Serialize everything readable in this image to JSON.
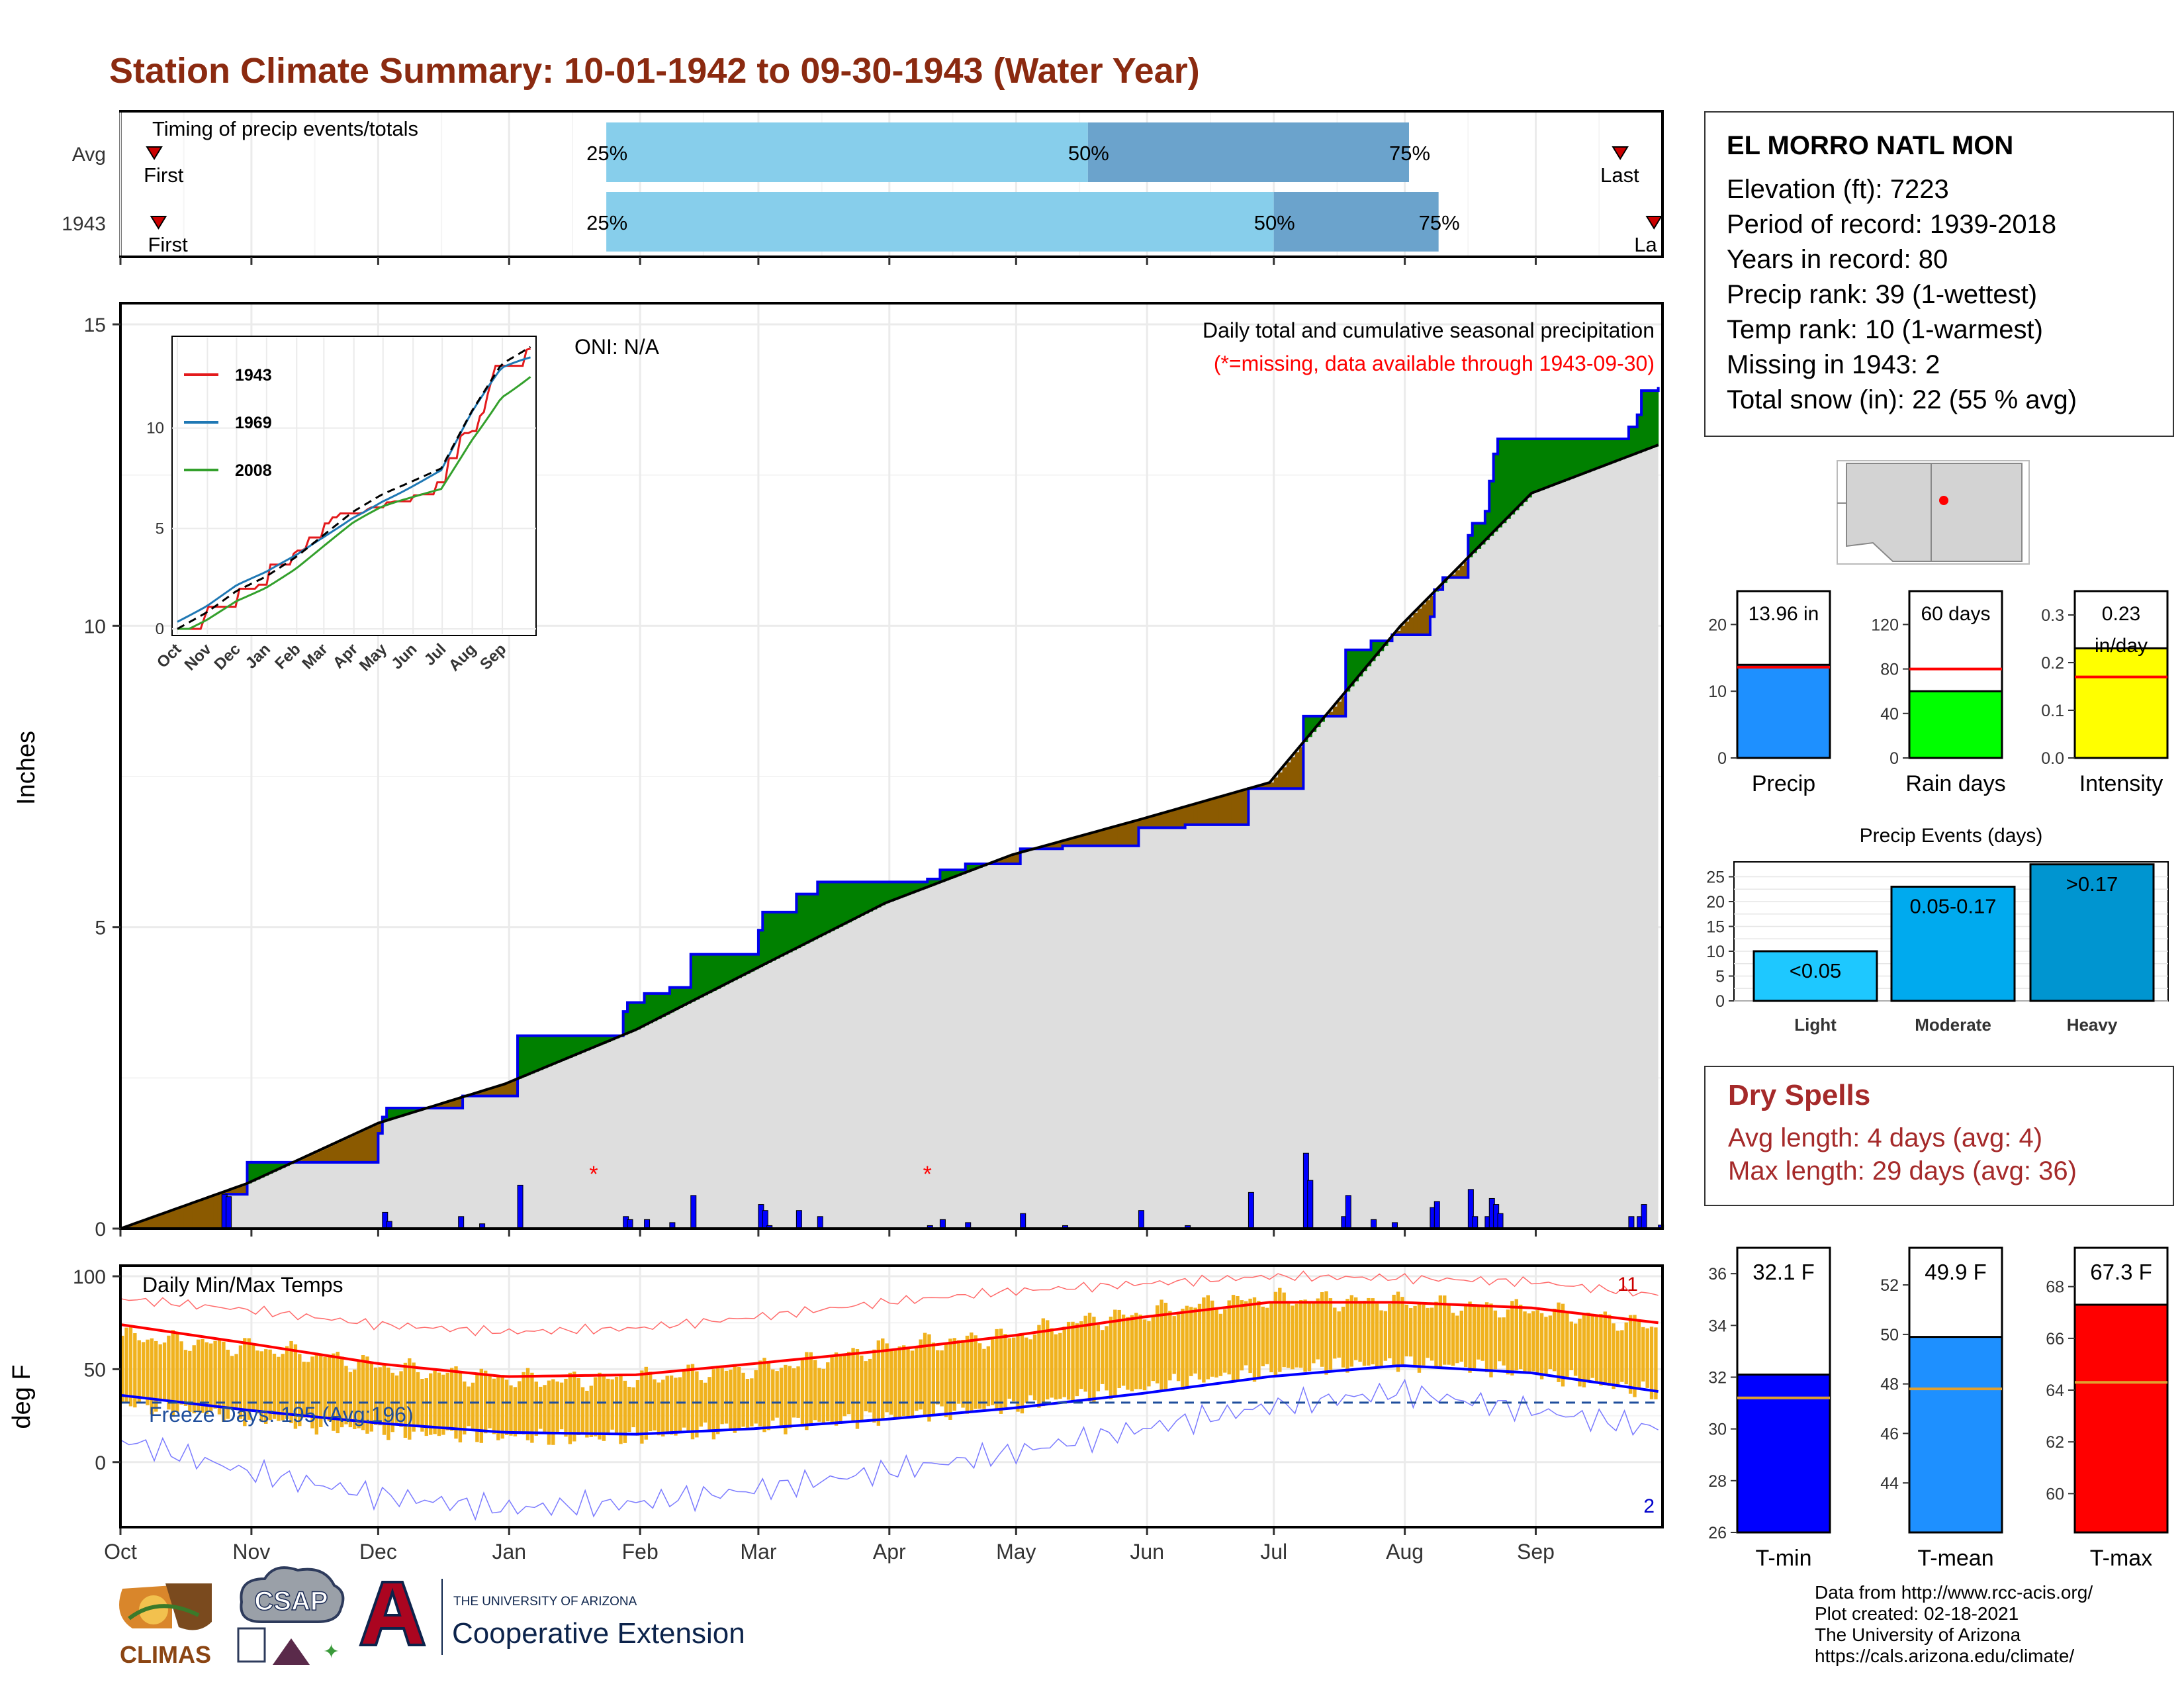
{
  "title": "Station Climate Summary: 10-01-1942 to 09-30-1943 (Water Year)",
  "colors": {
    "title": "#8b2a10",
    "dry_title": "#a52a2a",
    "precip_blue": "#1e90ff",
    "rain_green": "#00ff00",
    "intensity_yellow": "#ffff00",
    "above_green": "#008000",
    "below_brown": "#8b5a00",
    "cum_fill": "#dedede",
    "tmin": "#0000ff",
    "tmean": "#1e90ff",
    "tmax": "#ff0000",
    "band": "#f0b21e",
    "timing_light": "#87ceeb",
    "timing_dark": "#6ba3cc"
  },
  "timing": {
    "label": "Timing of precip events/totals",
    "rows": [
      {
        "label": "Avg",
        "first": "First",
        "last": "Last",
        "p25": "25%",
        "p50": "50%",
        "p75": "75%",
        "first_doy": 8,
        "last_doy": 355,
        "p25_doy": 115,
        "p50_doy": 229,
        "p75_doy": 305
      },
      {
        "label": "1943",
        "first": "First",
        "last": "La",
        "p25": "25%",
        "p50": "50%",
        "p75": "75%",
        "first_doy": 9,
        "last_doy": 363,
        "p25_doy": 115,
        "p50_doy": 273,
        "p75_doy": 312
      }
    ]
  },
  "main_chart": {
    "ylabel": "Inches",
    "yticks": [
      "0",
      "5",
      "10",
      "15"
    ],
    "ylim": [
      0,
      15
    ],
    "legend_line1": "Daily total and cumulative seasonal precipitation",
    "legend_line2": "(*=missing, data available through 1943-09-30)",
    "oni": "ONI: N/A",
    "months": [
      "Oct",
      "Nov",
      "Dec",
      "Jan",
      "Feb",
      "Mar",
      "Apr",
      "May",
      "Jun",
      "Jul",
      "Aug",
      "Sep"
    ],
    "inset": {
      "yticks": [
        "0",
        "5",
        "10"
      ],
      "xticks": [
        "Oct",
        "Nov",
        "Dec",
        "Jan",
        "Feb",
        "Mar",
        "Apr",
        "May",
        "Jun",
        "Jul",
        "Aug",
        "Sep"
      ],
      "legend": [
        {
          "name": "1943",
          "color": "#e31a1c"
        },
        {
          "name": "1969",
          "color": "#1f78b4"
        },
        {
          "name": "2008",
          "color": "#33a02c"
        }
      ]
    }
  },
  "chart_data": {
    "type": "area",
    "cumulative_precip_1943": [
      [
        0,
        0.0
      ],
      [
        24,
        0.0
      ],
      [
        25,
        0.57
      ],
      [
        30,
        1.1
      ],
      [
        60,
        1.1
      ],
      [
        61,
        1.58
      ],
      [
        62,
        1.85
      ],
      [
        63,
        2.0
      ],
      [
        80,
        2.0
      ],
      [
        81,
        2.2
      ],
      [
        93,
        2.2
      ],
      [
        94,
        3.2
      ],
      [
        118,
        3.2
      ],
      [
        119,
        3.6
      ],
      [
        120,
        3.75
      ],
      [
        124,
        3.9
      ],
      [
        130,
        4.0
      ],
      [
        134,
        4.0
      ],
      [
        135,
        4.55
      ],
      [
        150,
        4.55
      ],
      [
        151,
        4.95
      ],
      [
        152,
        5.25
      ],
      [
        160,
        5.55
      ],
      [
        165,
        5.75
      ],
      [
        190,
        5.75
      ],
      [
        191,
        5.8
      ],
      [
        194,
        5.95
      ],
      [
        200,
        6.05
      ],
      [
        211,
        6.05
      ],
      [
        213,
        6.3
      ],
      [
        223,
        6.35
      ],
      [
        239,
        6.35
      ],
      [
        241,
        6.65
      ],
      [
        251,
        6.65
      ],
      [
        252,
        6.7
      ],
      [
        266,
        6.7
      ],
      [
        267,
        7.3
      ],
      [
        279,
        7.3
      ],
      [
        280,
        8.5
      ],
      [
        289,
        8.5
      ],
      [
        290,
        9.6
      ],
      [
        296,
        9.75
      ],
      [
        301,
        9.85
      ],
      [
        310,
        10.15
      ],
      [
        311,
        10.6
      ],
      [
        313,
        10.8
      ],
      [
        318,
        10.8
      ],
      [
        319,
        11.5
      ],
      [
        320,
        11.7
      ],
      [
        323,
        11.9
      ],
      [
        324,
        12.4
      ],
      [
        325,
        12.85
      ],
      [
        326,
        13.1
      ],
      [
        345,
        13.1
      ],
      [
        356,
        13.1
      ],
      [
        357,
        13.3
      ],
      [
        359,
        13.5
      ],
      [
        360,
        13.9
      ],
      [
        364,
        13.96
      ]
    ],
    "cumulative_precip_avg": [
      [
        0,
        0.0
      ],
      [
        30,
        0.75
      ],
      [
        61,
        1.75
      ],
      [
        91,
        2.4
      ],
      [
        122,
        3.3
      ],
      [
        150,
        4.3
      ],
      [
        181,
        5.4
      ],
      [
        211,
        6.2
      ],
      [
        242,
        6.8
      ],
      [
        272,
        7.4
      ],
      [
        303,
        10.0
      ],
      [
        334,
        12.2
      ],
      [
        364,
        13.0
      ]
    ],
    "daily_precip": [
      [
        24,
        0.57
      ],
      [
        25,
        0.53
      ],
      [
        62,
        0.27
      ],
      [
        63,
        0.12
      ],
      [
        80,
        0.2
      ],
      [
        85,
        0.08
      ],
      [
        94,
        0.72
      ],
      [
        119,
        0.2
      ],
      [
        120,
        0.15
      ],
      [
        124,
        0.15
      ],
      [
        130,
        0.1
      ],
      [
        135,
        0.55
      ],
      [
        151,
        0.4
      ],
      [
        152,
        0.3
      ],
      [
        153,
        0.05
      ],
      [
        160,
        0.3
      ],
      [
        165,
        0.2
      ],
      [
        191,
        0.05
      ],
      [
        194,
        0.15
      ],
      [
        200,
        0.1
      ],
      [
        213,
        0.25
      ],
      [
        223,
        0.05
      ],
      [
        241,
        0.3
      ],
      [
        252,
        0.05
      ],
      [
        267,
        0.6
      ],
      [
        280,
        1.25
      ],
      [
        281,
        0.8
      ],
      [
        289,
        0.2
      ],
      [
        290,
        0.55
      ],
      [
        296,
        0.15
      ],
      [
        301,
        0.1
      ],
      [
        310,
        0.35
      ],
      [
        311,
        0.45
      ],
      [
        319,
        0.65
      ],
      [
        320,
        0.2
      ],
      [
        323,
        0.2
      ],
      [
        324,
        0.5
      ],
      [
        325,
        0.4
      ],
      [
        326,
        0.25
      ],
      [
        357,
        0.2
      ],
      [
        359,
        0.2
      ],
      [
        360,
        0.4
      ],
      [
        364,
        0.06
      ]
    ],
    "missing_days": [
      112,
      191
    ],
    "temp_daily_max": [
      [
        0,
        68
      ],
      [
        15,
        65
      ],
      [
        30,
        62
      ],
      [
        45,
        58
      ],
      [
        60,
        52
      ],
      [
        75,
        48
      ],
      [
        91,
        45
      ],
      [
        105,
        44
      ],
      [
        122,
        45
      ],
      [
        135,
        48
      ],
      [
        150,
        50
      ],
      [
        165,
        55
      ],
      [
        181,
        62
      ],
      [
        195,
        65
      ],
      [
        211,
        68
      ],
      [
        225,
        75
      ],
      [
        242,
        80
      ],
      [
        256,
        85
      ],
      [
        272,
        88
      ],
      [
        286,
        87
      ],
      [
        303,
        86
      ],
      [
        318,
        84
      ],
      [
        334,
        82
      ],
      [
        350,
        78
      ],
      [
        364,
        72
      ]
    ],
    "temp_daily_min": [
      [
        0,
        32
      ],
      [
        15,
        28
      ],
      [
        30,
        24
      ],
      [
        45,
        20
      ],
      [
        60,
        17
      ],
      [
        75,
        15
      ],
      [
        91,
        14
      ],
      [
        105,
        13
      ],
      [
        122,
        14
      ],
      [
        135,
        16
      ],
      [
        150,
        19
      ],
      [
        165,
        21
      ],
      [
        181,
        24
      ],
      [
        195,
        27
      ],
      [
        211,
        30
      ],
      [
        225,
        35
      ],
      [
        242,
        40
      ],
      [
        256,
        45
      ],
      [
        272,
        49
      ],
      [
        286,
        52
      ],
      [
        303,
        53
      ],
      [
        318,
        52
      ],
      [
        334,
        48
      ],
      [
        350,
        42
      ],
      [
        364,
        37
      ]
    ],
    "temp_avg_max_line": [
      [
        0,
        74
      ],
      [
        30,
        64
      ],
      [
        61,
        53
      ],
      [
        91,
        46
      ],
      [
        122,
        47
      ],
      [
        150,
        53
      ],
      [
        181,
        60
      ],
      [
        211,
        68
      ],
      [
        242,
        78
      ],
      [
        272,
        86
      ],
      [
        303,
        86
      ],
      [
        334,
        83
      ],
      [
        364,
        75
      ]
    ],
    "temp_avg_min_line": [
      [
        0,
        36
      ],
      [
        30,
        28
      ],
      [
        61,
        21
      ],
      [
        91,
        16
      ],
      [
        122,
        15
      ],
      [
        150,
        18
      ],
      [
        181,
        23
      ],
      [
        211,
        29
      ],
      [
        242,
        37
      ],
      [
        272,
        46
      ],
      [
        303,
        52
      ],
      [
        334,
        48
      ],
      [
        364,
        38
      ]
    ],
    "temp_record_high": [
      [
        0,
        88
      ],
      [
        30,
        82
      ],
      [
        61,
        74
      ],
      [
        91,
        70
      ],
      [
        122,
        72
      ],
      [
        150,
        78
      ],
      [
        181,
        86
      ],
      [
        211,
        92
      ],
      [
        242,
        96
      ],
      [
        272,
        100
      ],
      [
        303,
        99
      ],
      [
        334,
        97
      ],
      [
        364,
        90
      ]
    ],
    "temp_record_low": [
      [
        0,
        12
      ],
      [
        30,
        -5
      ],
      [
        61,
        -18
      ],
      [
        91,
        -25
      ],
      [
        122,
        -22
      ],
      [
        150,
        -15
      ],
      [
        181,
        -5
      ],
      [
        211,
        5
      ],
      [
        242,
        18
      ],
      [
        272,
        30
      ],
      [
        303,
        38
      ],
      [
        334,
        28
      ],
      [
        364,
        18
      ]
    ],
    "temp_ylim": [
      -35,
      105
    ],
    "temp_yticks": [
      "0",
      "50",
      "100"
    ],
    "freeze_line_value": 32,
    "freeze_label": "Freeze Days: 195 (Avg:196)",
    "temp_panel_label": "Daily Min/Max Temps",
    "temp_ylabel": "deg F",
    "record_high_count": "11",
    "record_low_count": "2"
  },
  "station": {
    "name": "EL MORRO NATL MON",
    "lines": [
      "Elevation (ft): 7223",
      "Period of record: 1939-2018",
      "Years in record: 80",
      "Precip rank: 39 (1-wettest)",
      "Temp rank: 10 (1-warmest)",
      "Missing in 1943: 2",
      "Total snow (in): 22 (55 % avg)"
    ]
  },
  "summary_bars": [
    {
      "name": "Precip",
      "label": "13.96 in",
      "value": 13.96,
      "avg": 13.6,
      "ymax": 25,
      "ticks": [
        "0",
        "10",
        "20"
      ],
      "tickvals": [
        0,
        10,
        20
      ],
      "color": "#1e90ff"
    },
    {
      "name": "Rain days",
      "label": "60 days",
      "value": 60,
      "avg": 80,
      "ymax": 150,
      "ticks": [
        "0",
        "40",
        "80",
        "120"
      ],
      "tickvals": [
        0,
        40,
        80,
        120
      ],
      "color": "#00ff00"
    },
    {
      "name": "Intensity",
      "label": "0.23",
      "label2": "in/day",
      "value": 0.23,
      "avg": 0.17,
      "ymax": 0.35,
      "ticks": [
        "0.0",
        "0.1",
        "0.2",
        "0.3"
      ],
      "tickvals": [
        0,
        0.1,
        0.2,
        0.3
      ],
      "color": "#ffff00"
    }
  ],
  "precip_events": {
    "title": "Precip Events (days)",
    "yticks": [
      "0",
      "5",
      "10",
      "15",
      "20",
      "25"
    ],
    "bars": [
      {
        "name": "Light",
        "label": "<0.05",
        "value": 10,
        "color": "#1ec8ff"
      },
      {
        "name": "Moderate",
        "label": "0.05-0.17",
        "value": 23,
        "color": "#00aaee"
      },
      {
        "name": "Heavy",
        "label": ">0.17",
        "value": 27.5,
        "color": "#0095d0"
      }
    ],
    "ymax": 28
  },
  "dry_spells": {
    "title": "Dry Spells",
    "avg_length": "Avg length: 4 days (avg: 4)",
    "max_length": "Max length: 29 days (avg: 36)"
  },
  "temp_bars": [
    {
      "name": "T-min",
      "label": "32.1 F",
      "value": 32.1,
      "avg": 31.2,
      "ymin": 26,
      "ymax": 37,
      "ticks": [
        "26",
        "28",
        "30",
        "32",
        "34",
        "36"
      ],
      "tickvals": [
        26,
        28,
        30,
        32,
        34,
        36
      ],
      "color": "#0000ff"
    },
    {
      "name": "T-mean",
      "label": "49.9 F",
      "value": 49.9,
      "avg": 47.8,
      "ymin": 42,
      "ymax": 53.5,
      "ticks": [
        "44",
        "46",
        "48",
        "50",
        "52"
      ],
      "tickvals": [
        44,
        46,
        48,
        50,
        52
      ],
      "color": "#1e90ff"
    },
    {
      "name": "T-max",
      "label": "67.3 F",
      "value": 67.3,
      "avg": 64.3,
      "ymin": 58.5,
      "ymax": 69.5,
      "ticks": [
        "60",
        "62",
        "64",
        "66",
        "68"
      ],
      "tickvals": [
        60,
        62,
        64,
        66,
        68
      ],
      "color": "#ff0000"
    }
  ],
  "logos": {
    "climas": "CLIMAS",
    "csap": "CSAP",
    "ua_top": "THE UNIVERSITY OF ARIZONA",
    "ua_bottom": "Cooperative Extension"
  },
  "credits": [
    "Data from http://www.rcc-acis.org/",
    "Plot created: 02-18-2021",
    "The University of Arizona",
    "https://cals.arizona.edu/climate/"
  ]
}
